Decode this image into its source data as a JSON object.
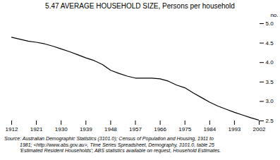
{
  "chart_data": {
    "type": "line",
    "title": "5.47   AVERAGE HOUSEHOLD SIZE, Persons per household",
    "ylabel": "no.",
    "x": [
      1912,
      1915,
      1918,
      1921,
      1924,
      1927,
      1930,
      1933,
      1936,
      1939,
      1942,
      1945,
      1948,
      1951,
      1954,
      1957,
      1960,
      1963,
      1966,
      1969,
      1972,
      1975,
      1978,
      1981,
      1984,
      1987,
      1990,
      1993,
      1996,
      1999,
      2002
    ],
    "values": [
      4.65,
      4.6,
      4.55,
      4.52,
      4.48,
      4.42,
      4.35,
      4.28,
      4.2,
      4.12,
      4.05,
      3.95,
      3.8,
      3.72,
      3.65,
      3.6,
      3.6,
      3.6,
      3.58,
      3.52,
      3.42,
      3.35,
      3.22,
      3.1,
      2.98,
      2.88,
      2.8,
      2.72,
      2.65,
      2.58,
      2.52
    ],
    "color": "#000000",
    "xlim": [
      1912,
      2002
    ],
    "xticks": [
      1912,
      1921,
      1930,
      1939,
      1948,
      1957,
      1966,
      1975,
      1984,
      1993,
      2002
    ],
    "ylim": [
      2.5,
      5.0
    ],
    "yticks": [
      2.5,
      {
        "value": 3,
        "label": "3.0"
      },
      3.5,
      {
        "value": 4,
        "label": "4.0"
      },
      4.5,
      {
        "value": 5,
        "label": "5.0"
      }
    ],
    "grid": false,
    "annotations": [
      "Source: Australian Demographic Statistics (3101.0); Census of Population and Housing, 1911 to",
      "1981;  <http://www.abs.gov.au>, Time Series Spreadsheet, Demography, 3101.0, table 25",
      "'Estimated Resident Households'; ABS statistics available on request, Household Estimates."
    ]
  }
}
